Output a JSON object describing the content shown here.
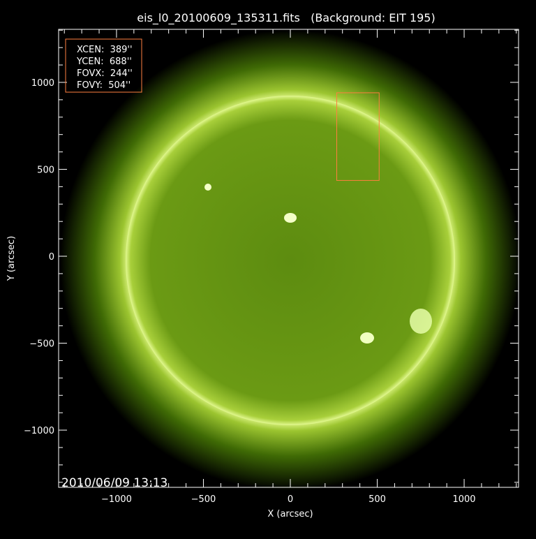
{
  "chart_data": {
    "type": "image",
    "title": "eis_l0_20100609_135311.fits   (Background: EIT 195)",
    "xlabel": "X (arcsec)",
    "ylabel": "Y (arcsec)",
    "xlim": [
      -1333,
      1313
    ],
    "ylim": [
      -1329,
      1305
    ],
    "xticks": [
      -1000,
      -500,
      0,
      500,
      1000
    ],
    "yticks": [
      -1000,
      -500,
      0,
      500,
      1000
    ],
    "xtick_labels": [
      "−1000",
      "−500",
      "0",
      "500",
      "1000"
    ],
    "ytick_labels": [
      "−1000",
      "−500",
      "0",
      "500",
      "1000"
    ],
    "minor_tick_step": 100,
    "timestamp": "2010/06/09 13:13",
    "solar_radius_arcsec": 950,
    "disk_center": [
      0,
      -25
    ],
    "fov_box": {
      "xcen": 389,
      "ycen": 688,
      "fovx": 244,
      "fovy": 504,
      "color": "#ff7f3f"
    },
    "info_box": {
      "lines": [
        "XCEN:  389''",
        "YCEN:  688''",
        "FOVX:  244''",
        "FOVY:  504''"
      ],
      "color": "#ff7f3f"
    },
    "colors": {
      "sun": "#6a9a10",
      "corona": "#d8f070",
      "axes": "#ffffff"
    }
  }
}
